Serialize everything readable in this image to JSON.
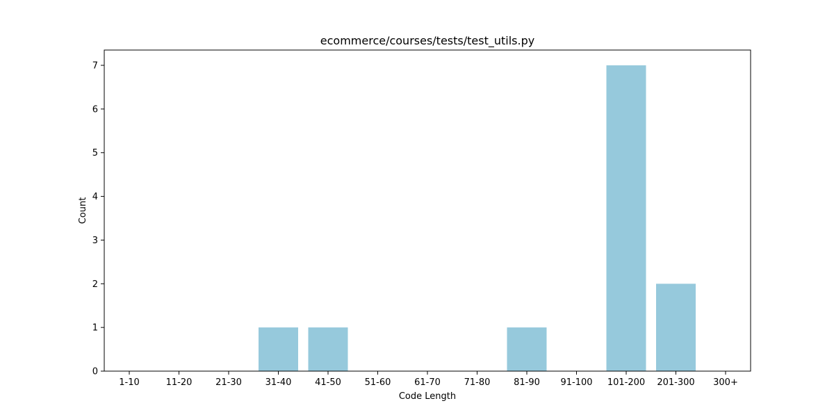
{
  "chart_data": {
    "type": "bar",
    "title": "ecommerce/courses/tests/test_utils.py",
    "xlabel": "Code Length",
    "ylabel": "Count",
    "categories": [
      "1-10",
      "11-20",
      "21-30",
      "31-40",
      "41-50",
      "51-60",
      "61-70",
      "71-80",
      "81-90",
      "91-100",
      "101-200",
      "201-300",
      "300+"
    ],
    "values": [
      0,
      0,
      0,
      1,
      1,
      0,
      0,
      0,
      1,
      0,
      7,
      2,
      0
    ],
    "ylim": [
      0,
      7.35
    ],
    "yticks": [
      0,
      1,
      2,
      3,
      4,
      5,
      6,
      7
    ],
    "grid": false,
    "bar_color": "#96c9dc"
  }
}
